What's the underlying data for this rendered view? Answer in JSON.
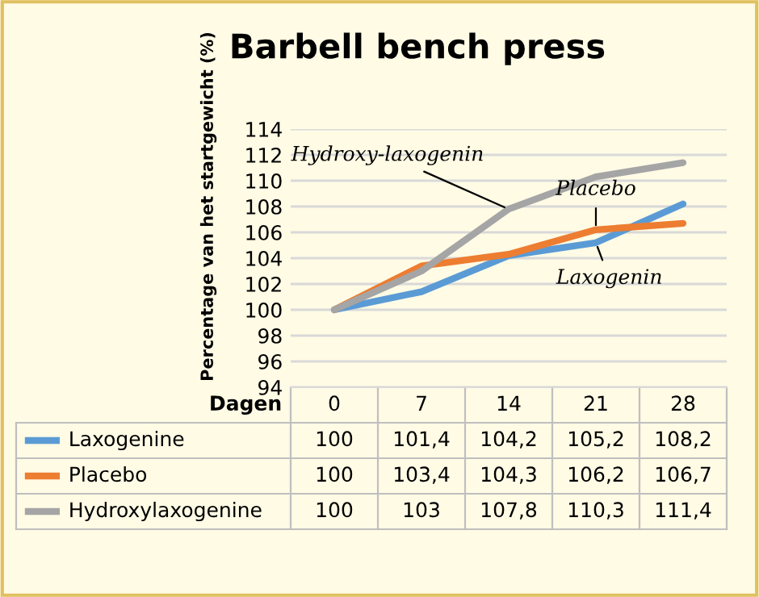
{
  "chart_data": {
    "type": "line",
    "title": "Barbell bench press",
    "ylabel": "Percentage van het startgewicht (%)",
    "xlabel": "Dagen",
    "categories": [
      "0",
      "7",
      "14",
      "21",
      "28"
    ],
    "ylim": [
      94,
      114
    ],
    "yticks": [
      94,
      96,
      98,
      100,
      102,
      104,
      106,
      108,
      110,
      112,
      114
    ],
    "grid": "y",
    "legend": "bottom",
    "marker": "none",
    "line_style": "solid",
    "series": [
      {
        "name": "Laxogenine",
        "color": "#5b9bd5",
        "values": [
          100,
          101.4,
          104.2,
          105.2,
          108.2
        ],
        "value_labels": [
          "100",
          "101,4",
          "104,2",
          "105,2",
          "108,2"
        ]
      },
      {
        "name": "Placebo",
        "color": "#ed7d31",
        "values": [
          100,
          103.4,
          104.3,
          106.2,
          106.7
        ],
        "value_labels": [
          "100",
          "103,4",
          "104,3",
          "106,2",
          "106,7"
        ]
      },
      {
        "name": "Hydroxylaxogenine",
        "color": "#a5a5a5",
        "values": [
          100,
          103,
          107.8,
          110.3,
          111.4
        ],
        "value_labels": [
          "100",
          "103",
          "107,8",
          "110,3",
          "111,4"
        ]
      }
    ],
    "annotations": [
      {
        "text": "Hydroxy-laxogenin",
        "x": "14",
        "y": 107.8
      },
      {
        "text": "Placebo",
        "x": "21",
        "y": 106.2
      },
      {
        "text": "Laxogenin",
        "x": "21",
        "y": 105.2
      }
    ]
  }
}
